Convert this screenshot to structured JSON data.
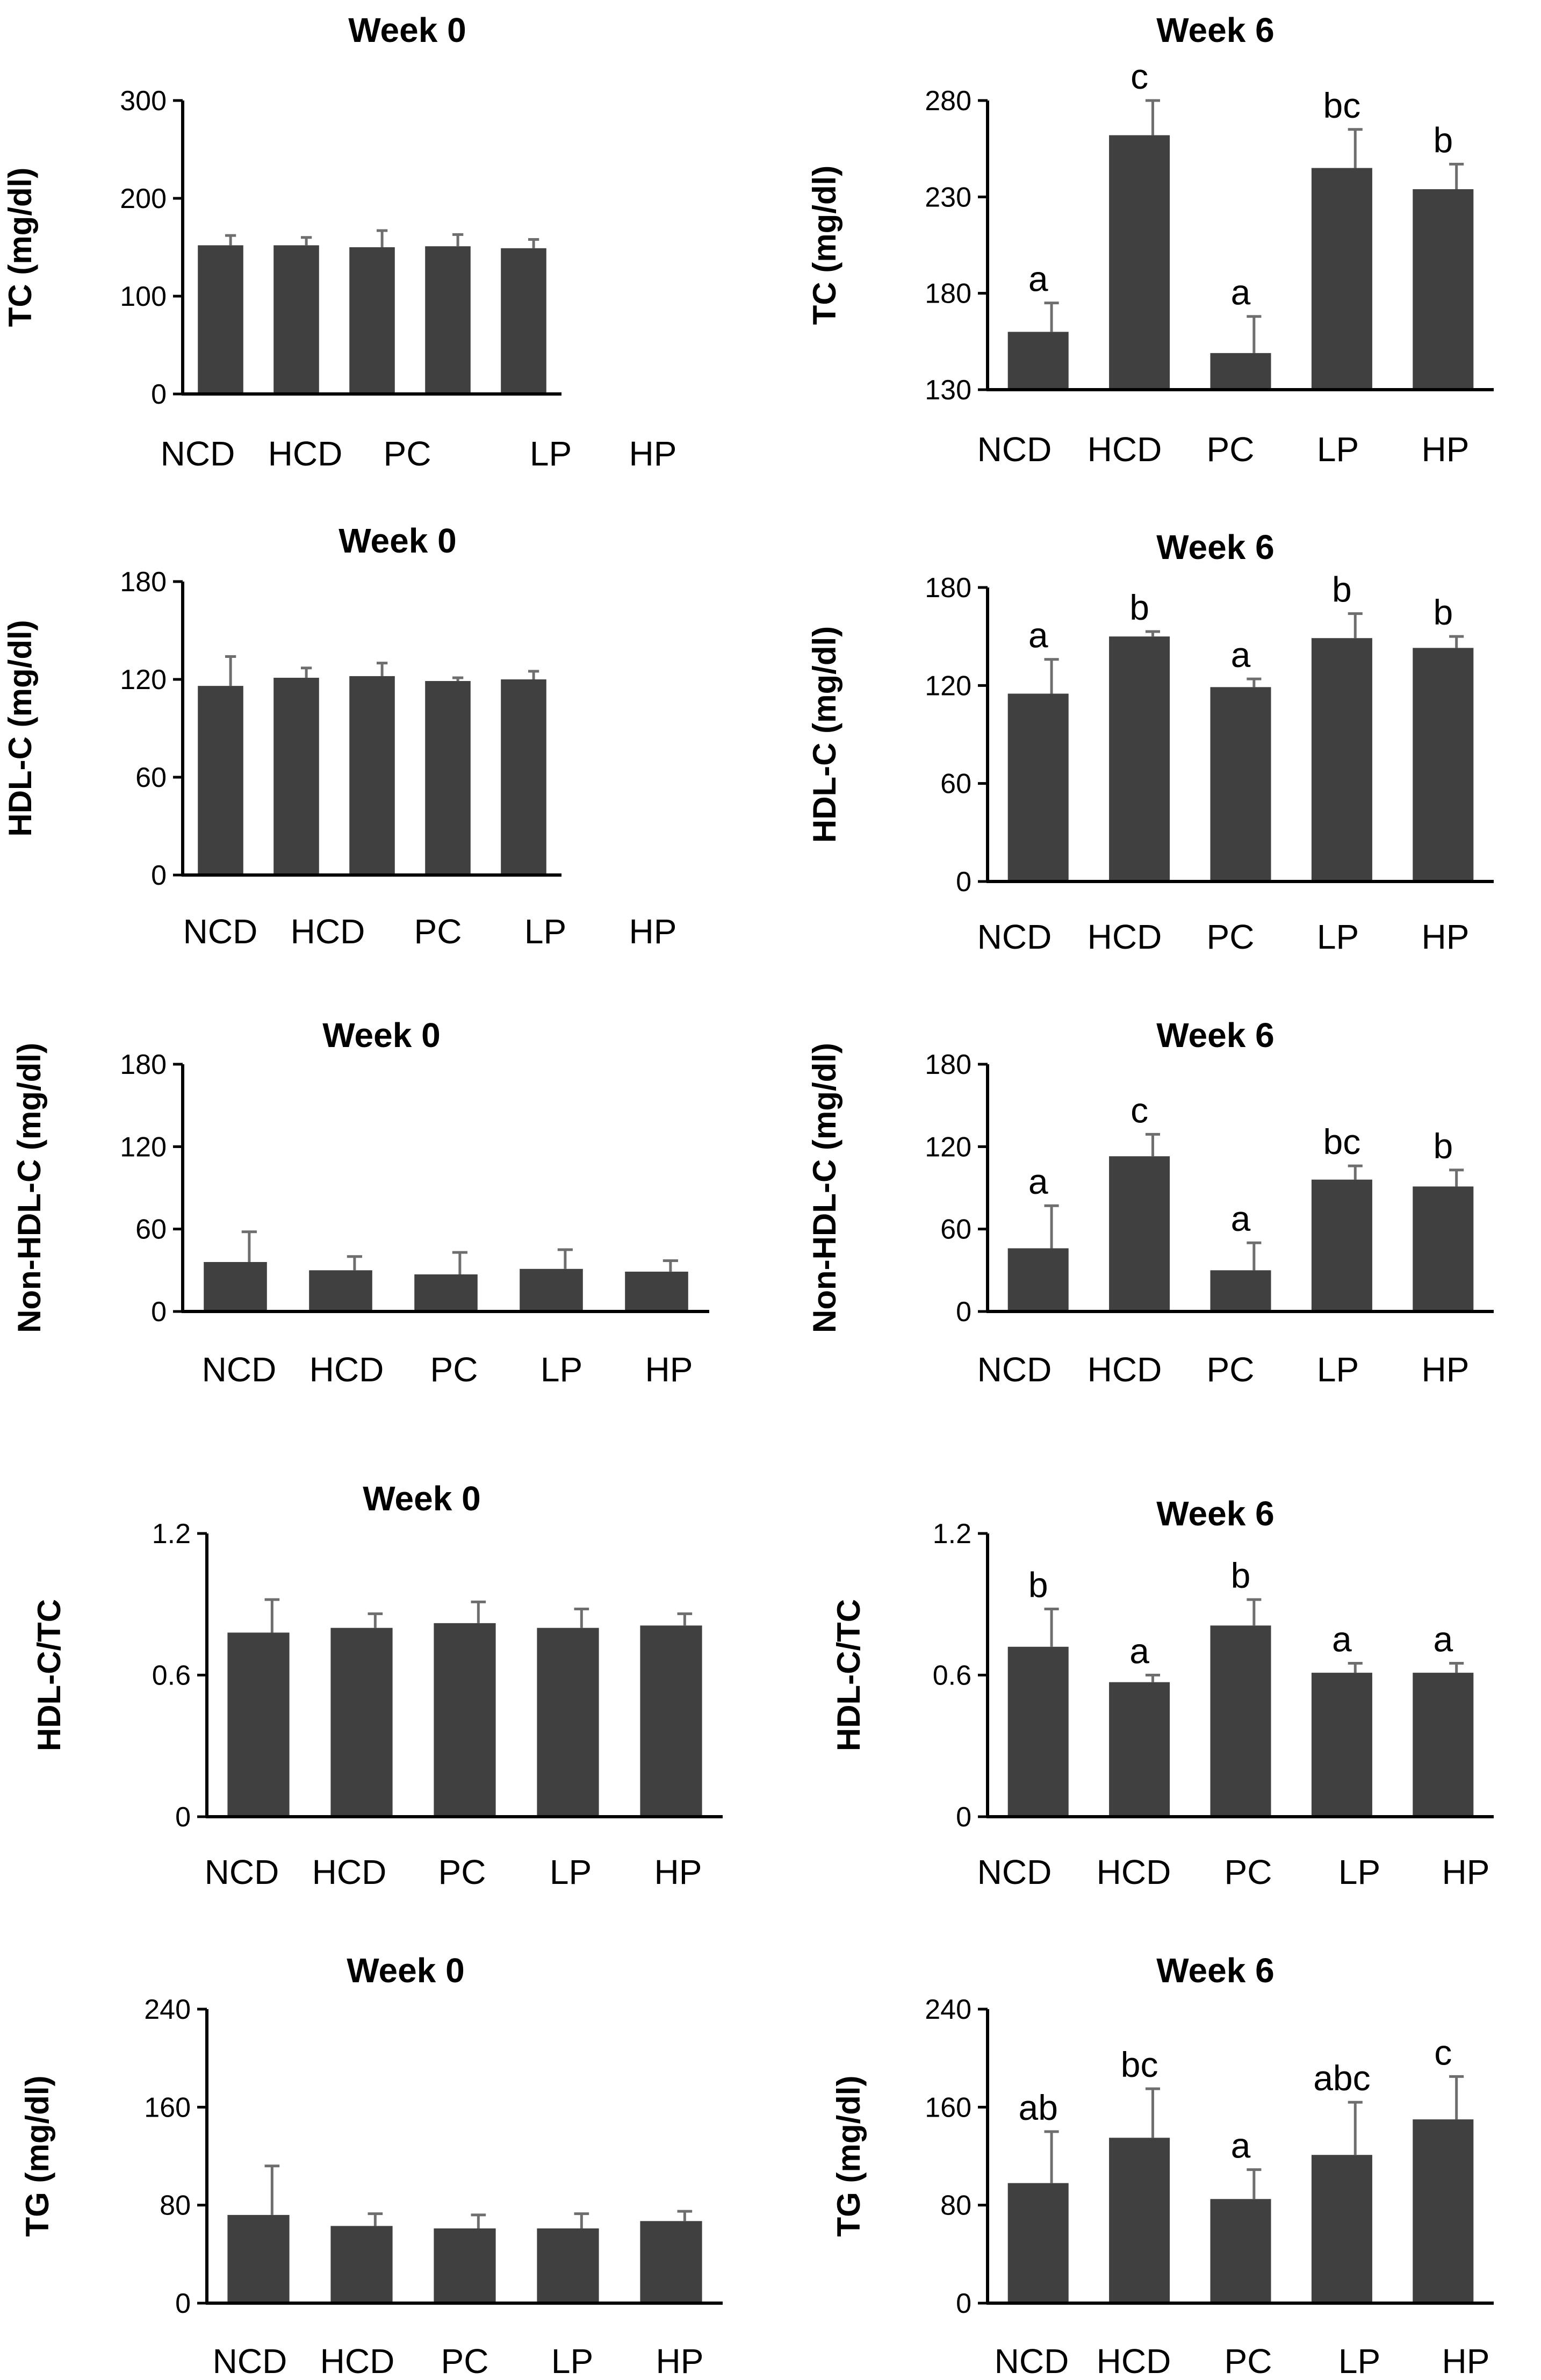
{
  "colors": {
    "bar": "#404040",
    "error_bar": "#6e6e6e",
    "axis": "#000000",
    "text": "#000000"
  },
  "chart_data": [
    {
      "type": "bar",
      "title": "Week 0",
      "ylabel": "TC (mg/dl)",
      "xlabel": "",
      "categories": [
        "NCD",
        "HCD",
        "PC",
        "LP",
        "HP"
      ],
      "ylim": [
        0,
        300
      ],
      "yticks": [
        0,
        100,
        200,
        300
      ],
      "ytick_labels": [
        "0",
        "100",
        "200",
        "300"
      ],
      "values": [
        152,
        152,
        150,
        151,
        149
      ],
      "errors": [
        10,
        8,
        17,
        12,
        9
      ],
      "significance": [
        "",
        "",
        "",
        "",
        ""
      ]
    },
    {
      "type": "bar",
      "title": "Week 6",
      "ylabel": "TC (mg/dl)",
      "xlabel": "",
      "categories": [
        "NCD",
        "HCD",
        "PC",
        "LP",
        "HP"
      ],
      "ylim": [
        130,
        280
      ],
      "yticks": [
        130,
        180,
        230,
        280
      ],
      "ytick_labels": [
        "130",
        "180",
        "230",
        "280"
      ],
      "values": [
        160,
        262,
        149,
        245,
        234
      ],
      "errors": [
        15,
        18,
        19,
        20,
        13
      ],
      "significance": [
        "a",
        "c",
        "a",
        "bc",
        "b"
      ]
    },
    {
      "type": "bar",
      "title": "Week 0",
      "ylabel": "HDL-C (mg/dl)",
      "xlabel": "",
      "categories": [
        "NCD",
        "HCD",
        "PC",
        "LP",
        "HP"
      ],
      "ylim": [
        0,
        180
      ],
      "yticks": [
        0,
        60,
        120,
        180
      ],
      "ytick_labels": [
        "0",
        "60",
        "120",
        "180"
      ],
      "values": [
        116,
        121,
        122,
        119,
        120
      ],
      "errors": [
        18,
        6,
        8,
        2,
        5
      ],
      "significance": [
        "",
        "",
        "",
        "",
        ""
      ]
    },
    {
      "type": "bar",
      "title": "Week 6",
      "ylabel": "HDL-C (mg/dl)",
      "xlabel": "",
      "categories": [
        "NCD",
        "HCD",
        "PC",
        "LP",
        "HP"
      ],
      "ylim": [
        0,
        180
      ],
      "yticks": [
        0,
        60,
        120,
        180
      ],
      "ytick_labels": [
        "0",
        "60",
        "120",
        "180"
      ],
      "values": [
        115,
        150,
        119,
        149,
        143
      ],
      "errors": [
        21,
        3,
        5,
        15,
        7
      ],
      "significance": [
        "a",
        "b",
        "a",
        "b",
        "b"
      ]
    },
    {
      "type": "bar",
      "title": "Week 0",
      "ylabel": "Non-HDL-C (mg/dl)",
      "xlabel": "",
      "categories": [
        "NCD",
        "HCD",
        "PC",
        "LP",
        "HP"
      ],
      "ylim": [
        0,
        180
      ],
      "yticks": [
        0,
        60,
        120,
        180
      ],
      "ytick_labels": [
        "0",
        "60",
        "120",
        "180"
      ],
      "values": [
        36,
        30,
        27,
        31,
        29
      ],
      "errors": [
        22,
        10,
        16,
        14,
        8
      ],
      "significance": [
        "",
        "",
        "",
        "",
        ""
      ]
    },
    {
      "type": "bar",
      "title": "Week 6",
      "ylabel": "Non-HDL-C (mg/dl)",
      "xlabel": "",
      "categories": [
        "NCD",
        "HCD",
        "PC",
        "LP",
        "HP"
      ],
      "ylim": [
        0,
        180
      ],
      "yticks": [
        0,
        60,
        120,
        180
      ],
      "ytick_labels": [
        "0",
        "60",
        "120",
        "180"
      ],
      "values": [
        46,
        113,
        30,
        96,
        91
      ],
      "errors": [
        31,
        16,
        20,
        10,
        12
      ],
      "significance": [
        "a",
        "c",
        "a",
        "bc",
        "b"
      ]
    },
    {
      "type": "bar",
      "title": "Week 0",
      "ylabel": "HDL-C/TC",
      "xlabel": "",
      "categories": [
        "NCD",
        "HCD",
        "PC",
        "LP",
        "HP"
      ],
      "ylim": [
        0,
        1.2
      ],
      "yticks": [
        0,
        0.6,
        1.2
      ],
      "ytick_labels": [
        "0",
        "0.6",
        "1.2"
      ],
      "values": [
        0.78,
        0.8,
        0.82,
        0.8,
        0.81
      ],
      "errors": [
        0.14,
        0.06,
        0.09,
        0.08,
        0.05
      ],
      "significance": [
        "",
        "",
        "",
        "",
        ""
      ]
    },
    {
      "type": "bar",
      "title": "Week 6",
      "ylabel": "HDL-C/TC",
      "xlabel": "",
      "categories": [
        "NCD",
        "HCD",
        "PC",
        "LP",
        "HP"
      ],
      "ylim": [
        0,
        1.2
      ],
      "yticks": [
        0,
        0.6,
        1.2
      ],
      "ytick_labels": [
        "0",
        "0.6",
        "1.2"
      ],
      "values": [
        0.72,
        0.57,
        0.81,
        0.61,
        0.61
      ],
      "errors": [
        0.16,
        0.03,
        0.11,
        0.04,
        0.04
      ],
      "significance": [
        "b",
        "a",
        "b",
        "a",
        "a"
      ]
    },
    {
      "type": "bar",
      "title": "Week 0",
      "ylabel": "TG (mg/dl)",
      "xlabel": "",
      "categories": [
        "NCD",
        "HCD",
        "PC",
        "LP",
        "HP"
      ],
      "ylim": [
        0,
        240
      ],
      "yticks": [
        0,
        80,
        160,
        240
      ],
      "ytick_labels": [
        "0",
        "80",
        "160",
        "240"
      ],
      "values": [
        72,
        63,
        61,
        61,
        67
      ],
      "errors": [
        40,
        10,
        11,
        12,
        8
      ],
      "significance": [
        "",
        "",
        "",
        "",
        ""
      ]
    },
    {
      "type": "bar",
      "title": "Week 6",
      "ylabel": "TG (mg/dl)",
      "xlabel": "",
      "categories": [
        "NCD",
        "HCD",
        "PC",
        "LP",
        "HP"
      ],
      "ylim": [
        0,
        240
      ],
      "yticks": [
        0,
        80,
        160,
        240
      ],
      "ytick_labels": [
        "0",
        "80",
        "160",
        "240"
      ],
      "values": [
        98,
        135,
        85,
        121,
        150
      ],
      "errors": [
        42,
        40,
        24,
        43,
        35
      ],
      "significance": [
        "ab",
        "bc",
        "a",
        "abc",
        "c"
      ]
    }
  ]
}
